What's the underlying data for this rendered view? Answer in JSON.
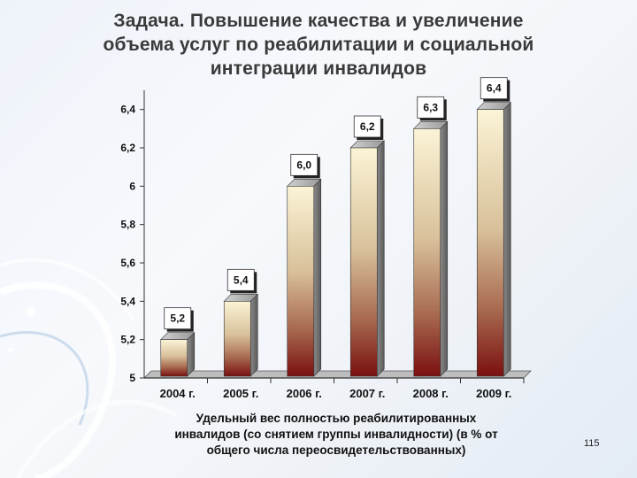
{
  "title": {
    "line1": "Задача. Повышение качества и увеличение",
    "line2": "объема услуг по реабилитации и социальной",
    "line3": "интеграции инвалидов"
  },
  "caption": {
    "line1": "Удельный вес полностью реабилитированных",
    "line2": "инвалидов (со снятием группы инвалидности) (в % от",
    "line3": "общего числа переосвидетельствованных)"
  },
  "page_number": "115",
  "chart_data": {
    "type": "bar",
    "categories": [
      "2004 г.",
      "2005 г.",
      "2006 г.",
      "2007 г.",
      "2008 г.",
      "2009 г."
    ],
    "values": [
      5.2,
      5.4,
      6.0,
      6.2,
      6.3,
      6.4
    ],
    "data_labels": [
      "5,2",
      "5,4",
      "6,0",
      "6,2",
      "6,3",
      "6,4"
    ],
    "title": "",
    "xlabel": "",
    "ylabel": "",
    "ylim": [
      5,
      6.5
    ],
    "yticks": [
      5,
      5.2,
      5.4,
      5.6,
      5.8,
      6,
      6.2,
      6.4
    ],
    "ytick_labels": [
      "5",
      "5,2",
      "5,4",
      "5,6",
      "5,8",
      "6",
      "6,2",
      "6,4"
    ],
    "grid": false,
    "legend": "none",
    "bar_style": "3d-gradient",
    "colors": {
      "bar_top": "#fbf4d6",
      "bar_mid": "#c8a884",
      "bar_bottom": "#7a1010",
      "bar_side": "#6f6f6f",
      "axis": "#333333"
    }
  }
}
